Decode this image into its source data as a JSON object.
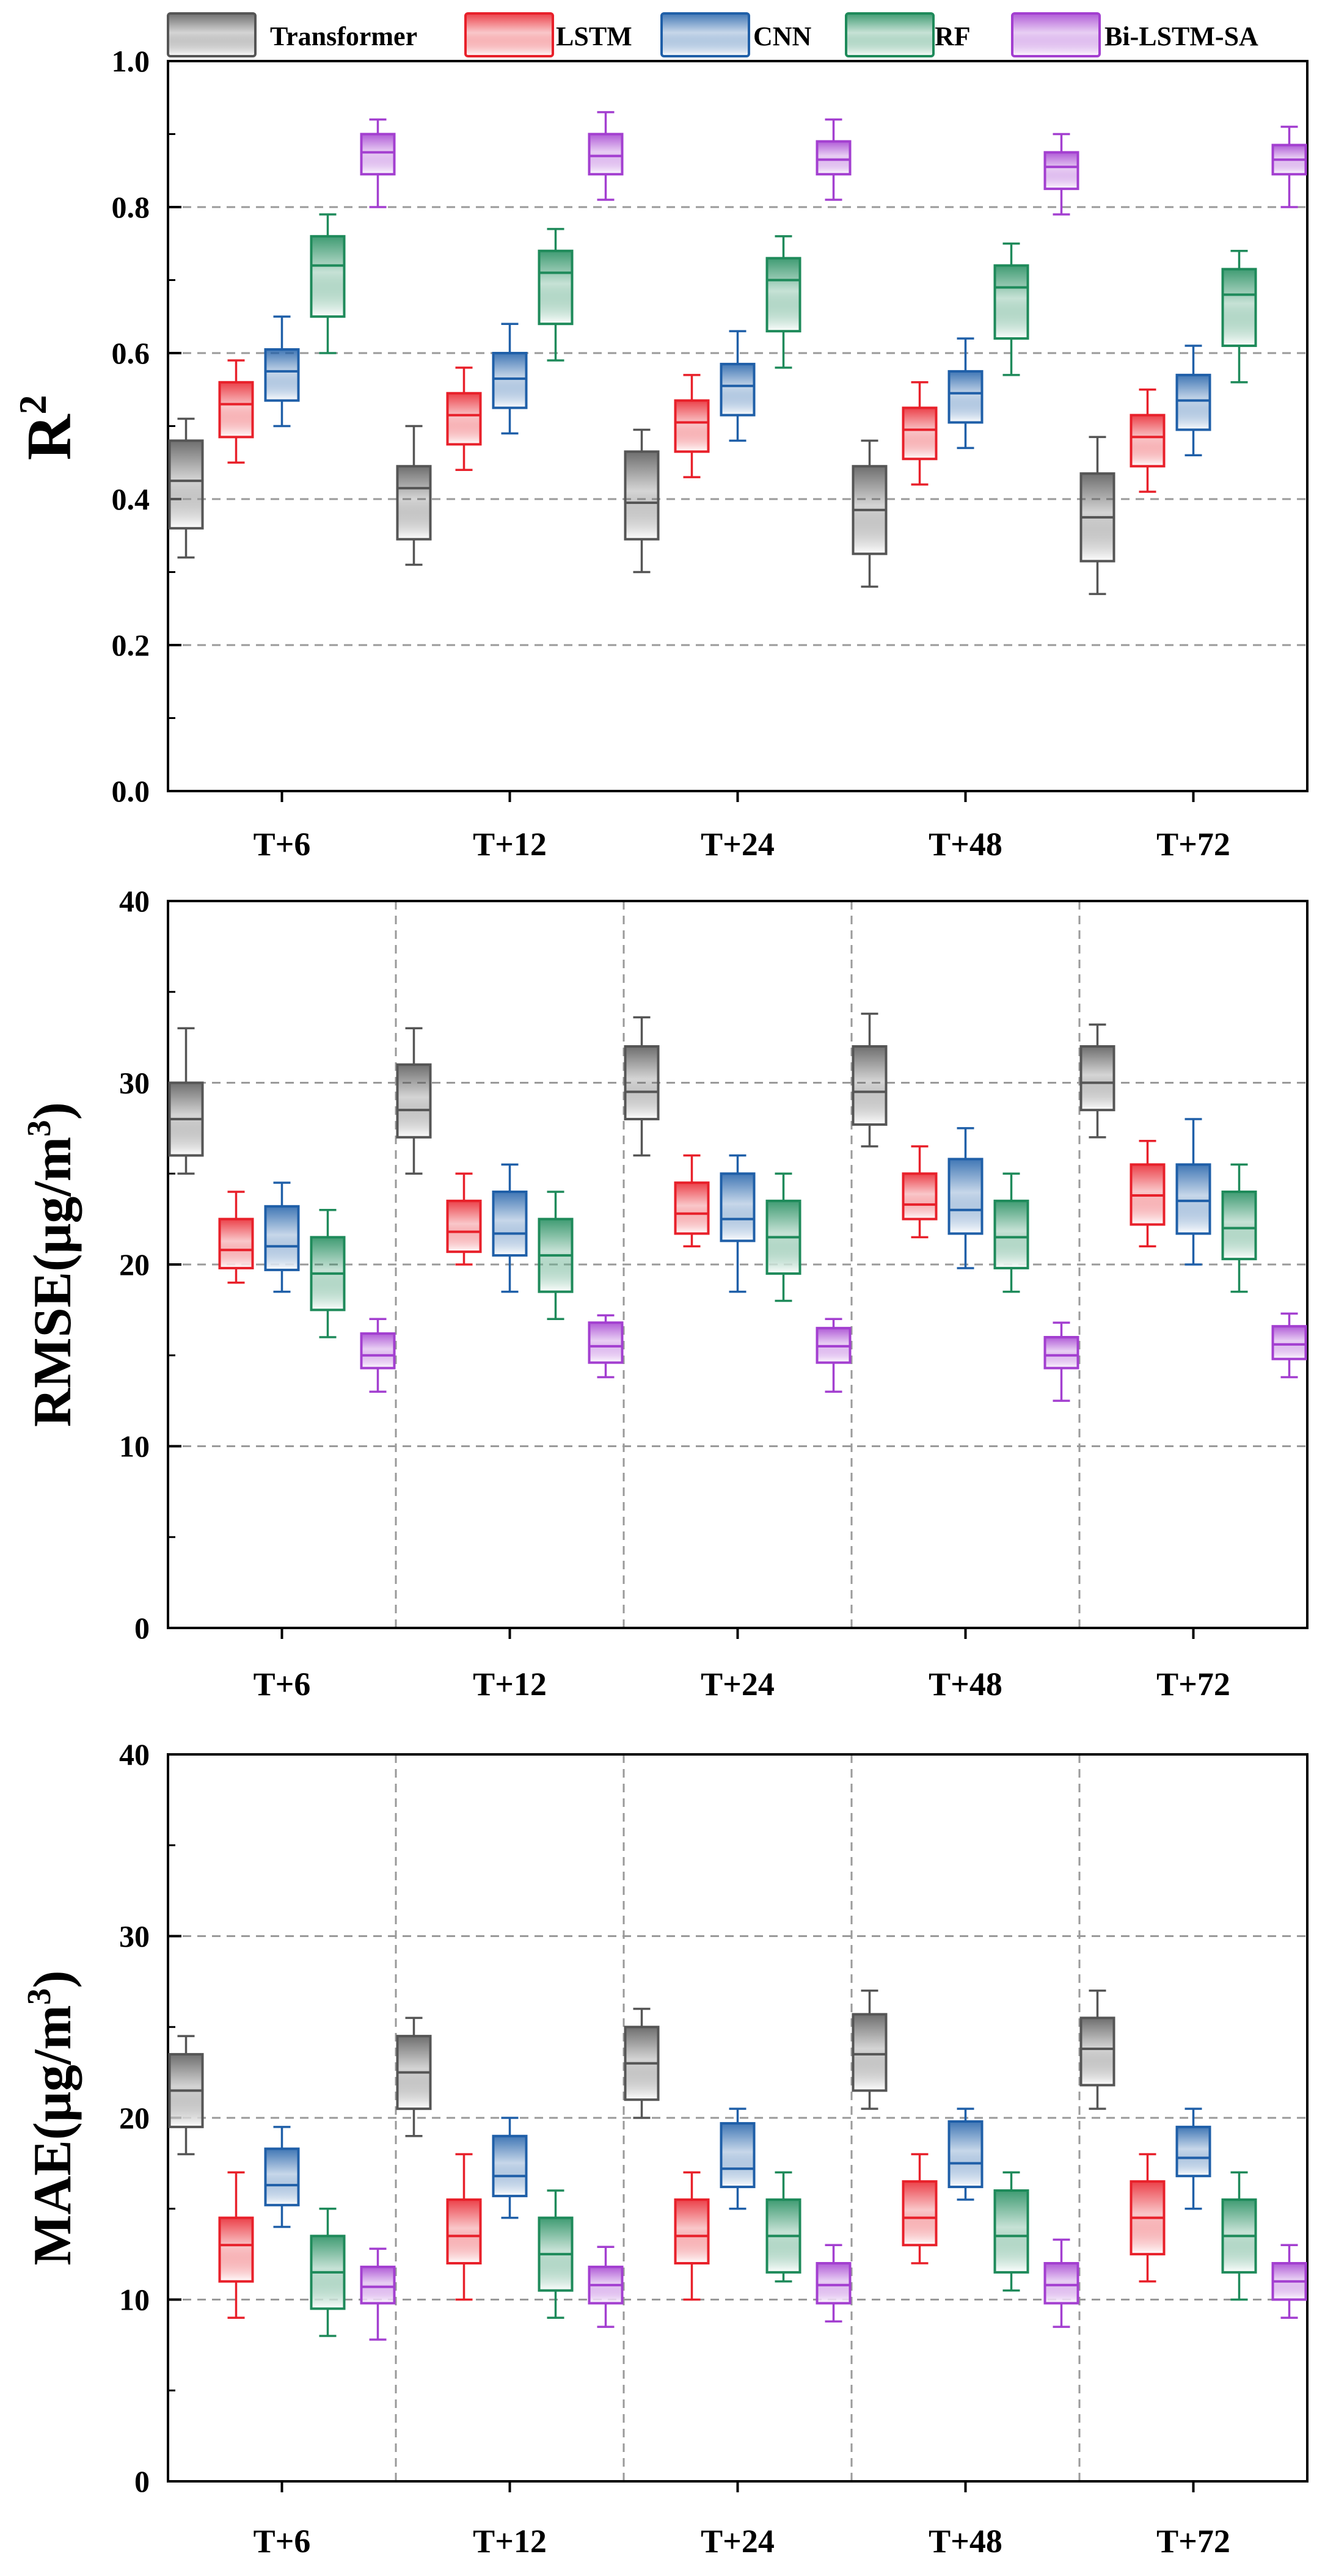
{
  "legend": [
    "Transformer",
    "LSTM",
    "CNN",
    "RF",
    "Bi-LSTM-SA"
  ],
  "colors": {
    "Transformer": "#555555",
    "LSTM": "#e8202a",
    "CNN": "#1f5fa8",
    "RF": "#1e8a5a",
    "Bi-LSTM-SA": "#a33fd0"
  },
  "chart_data": [
    {
      "type": "box",
      "ylabel_main": "R",
      "ylabel_sup": "2",
      "ylabel_tail": "",
      "ylim": [
        0,
        1.0
      ],
      "yticks": [
        0.0,
        0.2,
        0.4,
        0.6,
        0.8,
        1.0
      ],
      "ytick_labels": [
        "0.0",
        "0.2",
        "0.4",
        "0.6",
        "0.8",
        "1.0"
      ],
      "grid": "dashed horizontal",
      "vertical_dividers": false,
      "categories": [
        "T+6",
        "T+12",
        "T+24",
        "T+48",
        "T+72"
      ],
      "series": [
        {
          "name": "Transformer",
          "boxes": [
            {
              "min": 0.32,
              "q1": 0.36,
              "median": 0.425,
              "q3": 0.48,
              "max": 0.51
            },
            {
              "min": 0.31,
              "q1": 0.345,
              "median": 0.415,
              "q3": 0.445,
              "max": 0.5
            },
            {
              "min": 0.3,
              "q1": 0.345,
              "median": 0.395,
              "q3": 0.465,
              "max": 0.495
            },
            {
              "min": 0.28,
              "q1": 0.325,
              "median": 0.385,
              "q3": 0.445,
              "max": 0.48
            },
            {
              "min": 0.27,
              "q1": 0.315,
              "median": 0.375,
              "q3": 0.435,
              "max": 0.485
            }
          ]
        },
        {
          "name": "LSTM",
          "boxes": [
            {
              "min": 0.45,
              "q1": 0.485,
              "median": 0.53,
              "q3": 0.56,
              "max": 0.59
            },
            {
              "min": 0.44,
              "q1": 0.475,
              "median": 0.515,
              "q3": 0.545,
              "max": 0.58
            },
            {
              "min": 0.43,
              "q1": 0.465,
              "median": 0.505,
              "q3": 0.535,
              "max": 0.57
            },
            {
              "min": 0.42,
              "q1": 0.455,
              "median": 0.495,
              "q3": 0.525,
              "max": 0.56
            },
            {
              "min": 0.41,
              "q1": 0.445,
              "median": 0.485,
              "q3": 0.515,
              "max": 0.55
            }
          ]
        },
        {
          "name": "CNN",
          "boxes": [
            {
              "min": 0.5,
              "q1": 0.535,
              "median": 0.575,
              "q3": 0.605,
              "max": 0.65
            },
            {
              "min": 0.49,
              "q1": 0.525,
              "median": 0.565,
              "q3": 0.6,
              "max": 0.64
            },
            {
              "min": 0.48,
              "q1": 0.515,
              "median": 0.555,
              "q3": 0.585,
              "max": 0.63
            },
            {
              "min": 0.47,
              "q1": 0.505,
              "median": 0.545,
              "q3": 0.575,
              "max": 0.62
            },
            {
              "min": 0.46,
              "q1": 0.495,
              "median": 0.535,
              "q3": 0.57,
              "max": 0.61
            }
          ]
        },
        {
          "name": "RF",
          "boxes": [
            {
              "min": 0.6,
              "q1": 0.65,
              "median": 0.72,
              "q3": 0.76,
              "max": 0.79
            },
            {
              "min": 0.59,
              "q1": 0.64,
              "median": 0.71,
              "q3": 0.74,
              "max": 0.77
            },
            {
              "min": 0.58,
              "q1": 0.63,
              "median": 0.7,
              "q3": 0.73,
              "max": 0.76
            },
            {
              "min": 0.57,
              "q1": 0.62,
              "median": 0.69,
              "q3": 0.72,
              "max": 0.75
            },
            {
              "min": 0.56,
              "q1": 0.61,
              "median": 0.68,
              "q3": 0.715,
              "max": 0.74
            }
          ]
        },
        {
          "name": "Bi-LSTM-SA",
          "boxes": [
            {
              "min": 0.8,
              "q1": 0.845,
              "median": 0.875,
              "q3": 0.9,
              "max": 0.92
            },
            {
              "min": 0.81,
              "q1": 0.845,
              "median": 0.87,
              "q3": 0.9,
              "max": 0.93
            },
            {
              "min": 0.81,
              "q1": 0.845,
              "median": 0.865,
              "q3": 0.89,
              "max": 0.92
            },
            {
              "min": 0.79,
              "q1": 0.825,
              "median": 0.855,
              "q3": 0.875,
              "max": 0.9
            },
            {
              "min": 0.8,
              "q1": 0.845,
              "median": 0.865,
              "q3": 0.885,
              "max": 0.91
            }
          ]
        }
      ]
    },
    {
      "type": "box",
      "ylabel_main": "RMSE(μg/m",
      "ylabel_sup": "3",
      "ylabel_tail": ")",
      "ylim": [
        0,
        40
      ],
      "yticks": [
        0,
        10,
        20,
        30,
        40
      ],
      "ytick_labels": [
        "0",
        "10",
        "20",
        "30",
        "40"
      ],
      "grid": "dashed horizontal",
      "vertical_dividers": true,
      "categories": [
        "T+6",
        "T+12",
        "T+24",
        "T+48",
        "T+72"
      ],
      "series": [
        {
          "name": "Transformer",
          "boxes": [
            {
              "min": 25.0,
              "q1": 26.0,
              "median": 28.0,
              "q3": 30.0,
              "max": 33.0
            },
            {
              "min": 25.0,
              "q1": 27.0,
              "median": 28.5,
              "q3": 31.0,
              "max": 33.0
            },
            {
              "min": 26.0,
              "q1": 28.0,
              "median": 29.5,
              "q3": 32.0,
              "max": 33.6
            },
            {
              "min": 26.5,
              "q1": 27.7,
              "median": 29.5,
              "q3": 32.0,
              "max": 33.8
            },
            {
              "min": 27.0,
              "q1": 28.5,
              "median": 30.0,
              "q3": 32.0,
              "max": 33.2
            }
          ]
        },
        {
          "name": "LSTM",
          "boxes": [
            {
              "min": 19.0,
              "q1": 19.8,
              "median": 20.8,
              "q3": 22.5,
              "max": 24.0
            },
            {
              "min": 20.0,
              "q1": 20.7,
              "median": 21.8,
              "q3": 23.5,
              "max": 25.0
            },
            {
              "min": 21.0,
              "q1": 21.7,
              "median": 22.8,
              "q3": 24.5,
              "max": 26.0
            },
            {
              "min": 21.5,
              "q1": 22.5,
              "median": 23.3,
              "q3": 25.0,
              "max": 26.5
            },
            {
              "min": 21.0,
              "q1": 22.2,
              "median": 23.8,
              "q3": 25.5,
              "max": 26.8
            }
          ]
        },
        {
          "name": "CNN",
          "boxes": [
            {
              "min": 18.5,
              "q1": 19.7,
              "median": 21.0,
              "q3": 23.2,
              "max": 24.5
            },
            {
              "min": 18.5,
              "q1": 20.5,
              "median": 21.7,
              "q3": 24.0,
              "max": 25.5
            },
            {
              "min": 18.5,
              "q1": 21.3,
              "median": 22.5,
              "q3": 25.0,
              "max": 26.0
            },
            {
              "min": 19.8,
              "q1": 21.7,
              "median": 23.0,
              "q3": 25.8,
              "max": 27.5
            },
            {
              "min": 20.0,
              "q1": 21.7,
              "median": 23.5,
              "q3": 25.5,
              "max": 28.0
            }
          ]
        },
        {
          "name": "RF",
          "boxes": [
            {
              "min": 16.0,
              "q1": 17.5,
              "median": 19.5,
              "q3": 21.5,
              "max": 23.0
            },
            {
              "min": 17.0,
              "q1": 18.5,
              "median": 20.5,
              "q3": 22.5,
              "max": 24.0
            },
            {
              "min": 18.0,
              "q1": 19.5,
              "median": 21.5,
              "q3": 23.5,
              "max": 25.0
            },
            {
              "min": 18.5,
              "q1": 19.8,
              "median": 21.5,
              "q3": 23.5,
              "max": 25.0
            },
            {
              "min": 18.5,
              "q1": 20.3,
              "median": 22.0,
              "q3": 24.0,
              "max": 25.5
            }
          ]
        },
        {
          "name": "Bi-LSTM-SA",
          "boxes": [
            {
              "min": 13.0,
              "q1": 14.3,
              "median": 15.0,
              "q3": 16.2,
              "max": 17.0
            },
            {
              "min": 13.8,
              "q1": 14.6,
              "median": 15.5,
              "q3": 16.8,
              "max": 17.2
            },
            {
              "min": 13.0,
              "q1": 14.6,
              "median": 15.5,
              "q3": 16.5,
              "max": 17.0
            },
            {
              "min": 12.5,
              "q1": 14.3,
              "median": 15.0,
              "q3": 16.0,
              "max": 16.8
            },
            {
              "min": 13.8,
              "q1": 14.8,
              "median": 15.6,
              "q3": 16.6,
              "max": 17.3
            }
          ]
        }
      ]
    },
    {
      "type": "box",
      "ylabel_main": "MAE(μg/m",
      "ylabel_sup": "3",
      "ylabel_tail": ")",
      "ylim": [
        0,
        40
      ],
      "yticks": [
        0,
        10,
        20,
        30,
        40
      ],
      "ytick_labels": [
        "0",
        "10",
        "20",
        "30",
        "40"
      ],
      "grid": "dashed horizontal",
      "vertical_dividers": true,
      "categories": [
        "T+6",
        "T+12",
        "T+24",
        "T+48",
        "T+72"
      ],
      "series": [
        {
          "name": "Transformer",
          "boxes": [
            {
              "min": 18.0,
              "q1": 19.5,
              "median": 21.5,
              "q3": 23.5,
              "max": 24.5
            },
            {
              "min": 19.0,
              "q1": 20.5,
              "median": 22.5,
              "q3": 24.5,
              "max": 25.5
            },
            {
              "min": 20.0,
              "q1": 21.0,
              "median": 23.0,
              "q3": 25.0,
              "max": 26.0
            },
            {
              "min": 20.5,
              "q1": 21.5,
              "median": 23.5,
              "q3": 25.7,
              "max": 27.0
            },
            {
              "min": 20.5,
              "q1": 21.8,
              "median": 23.8,
              "q3": 25.5,
              "max": 27.0
            }
          ]
        },
        {
          "name": "LSTM",
          "boxes": [
            {
              "min": 9.0,
              "q1": 11.0,
              "median": 13.0,
              "q3": 14.5,
              "max": 17.0
            },
            {
              "min": 10.0,
              "q1": 12.0,
              "median": 13.5,
              "q3": 15.5,
              "max": 18.0
            },
            {
              "min": 10.0,
              "q1": 12.0,
              "median": 13.5,
              "q3": 15.5,
              "max": 17.0
            },
            {
              "min": 12.0,
              "q1": 13.0,
              "median": 14.5,
              "q3": 16.5,
              "max": 18.0
            },
            {
              "min": 11.0,
              "q1": 12.5,
              "median": 14.5,
              "q3": 16.5,
              "max": 18.0
            }
          ]
        },
        {
          "name": "CNN",
          "boxes": [
            {
              "min": 14.0,
              "q1": 15.2,
              "median": 16.3,
              "q3": 18.3,
              "max": 19.5
            },
            {
              "min": 14.5,
              "q1": 15.7,
              "median": 16.8,
              "q3": 19.0,
              "max": 20.0
            },
            {
              "min": 15.0,
              "q1": 16.2,
              "median": 17.2,
              "q3": 19.7,
              "max": 20.5
            },
            {
              "min": 15.5,
              "q1": 16.2,
              "median": 17.5,
              "q3": 19.8,
              "max": 20.5
            },
            {
              "min": 15.0,
              "q1": 16.8,
              "median": 17.8,
              "q3": 19.5,
              "max": 20.5
            }
          ]
        },
        {
          "name": "RF",
          "boxes": [
            {
              "min": 8.0,
              "q1": 9.5,
              "median": 11.5,
              "q3": 13.5,
              "max": 15.0
            },
            {
              "min": 9.0,
              "q1": 10.5,
              "median": 12.5,
              "q3": 14.5,
              "max": 16.0
            },
            {
              "min": 11.0,
              "q1": 11.5,
              "median": 13.5,
              "q3": 15.5,
              "max": 17.0
            },
            {
              "min": 10.5,
              "q1": 11.5,
              "median": 13.5,
              "q3": 16.0,
              "max": 17.0
            },
            {
              "min": 10.0,
              "q1": 11.5,
              "median": 13.5,
              "q3": 15.5,
              "max": 17.0
            }
          ]
        },
        {
          "name": "Bi-LSTM-SA",
          "boxes": [
            {
              "min": 7.8,
              "q1": 9.8,
              "median": 10.7,
              "q3": 11.8,
              "max": 12.8
            },
            {
              "min": 8.5,
              "q1": 9.8,
              "median": 10.8,
              "q3": 11.8,
              "max": 12.9
            },
            {
              "min": 8.8,
              "q1": 9.8,
              "median": 10.8,
              "q3": 12.0,
              "max": 13.0
            },
            {
              "min": 8.5,
              "q1": 9.8,
              "median": 10.8,
              "q3": 12.0,
              "max": 13.3
            },
            {
              "min": 9.0,
              "q1": 10.0,
              "median": 11.0,
              "q3": 12.0,
              "max": 13.0
            }
          ]
        }
      ]
    }
  ]
}
